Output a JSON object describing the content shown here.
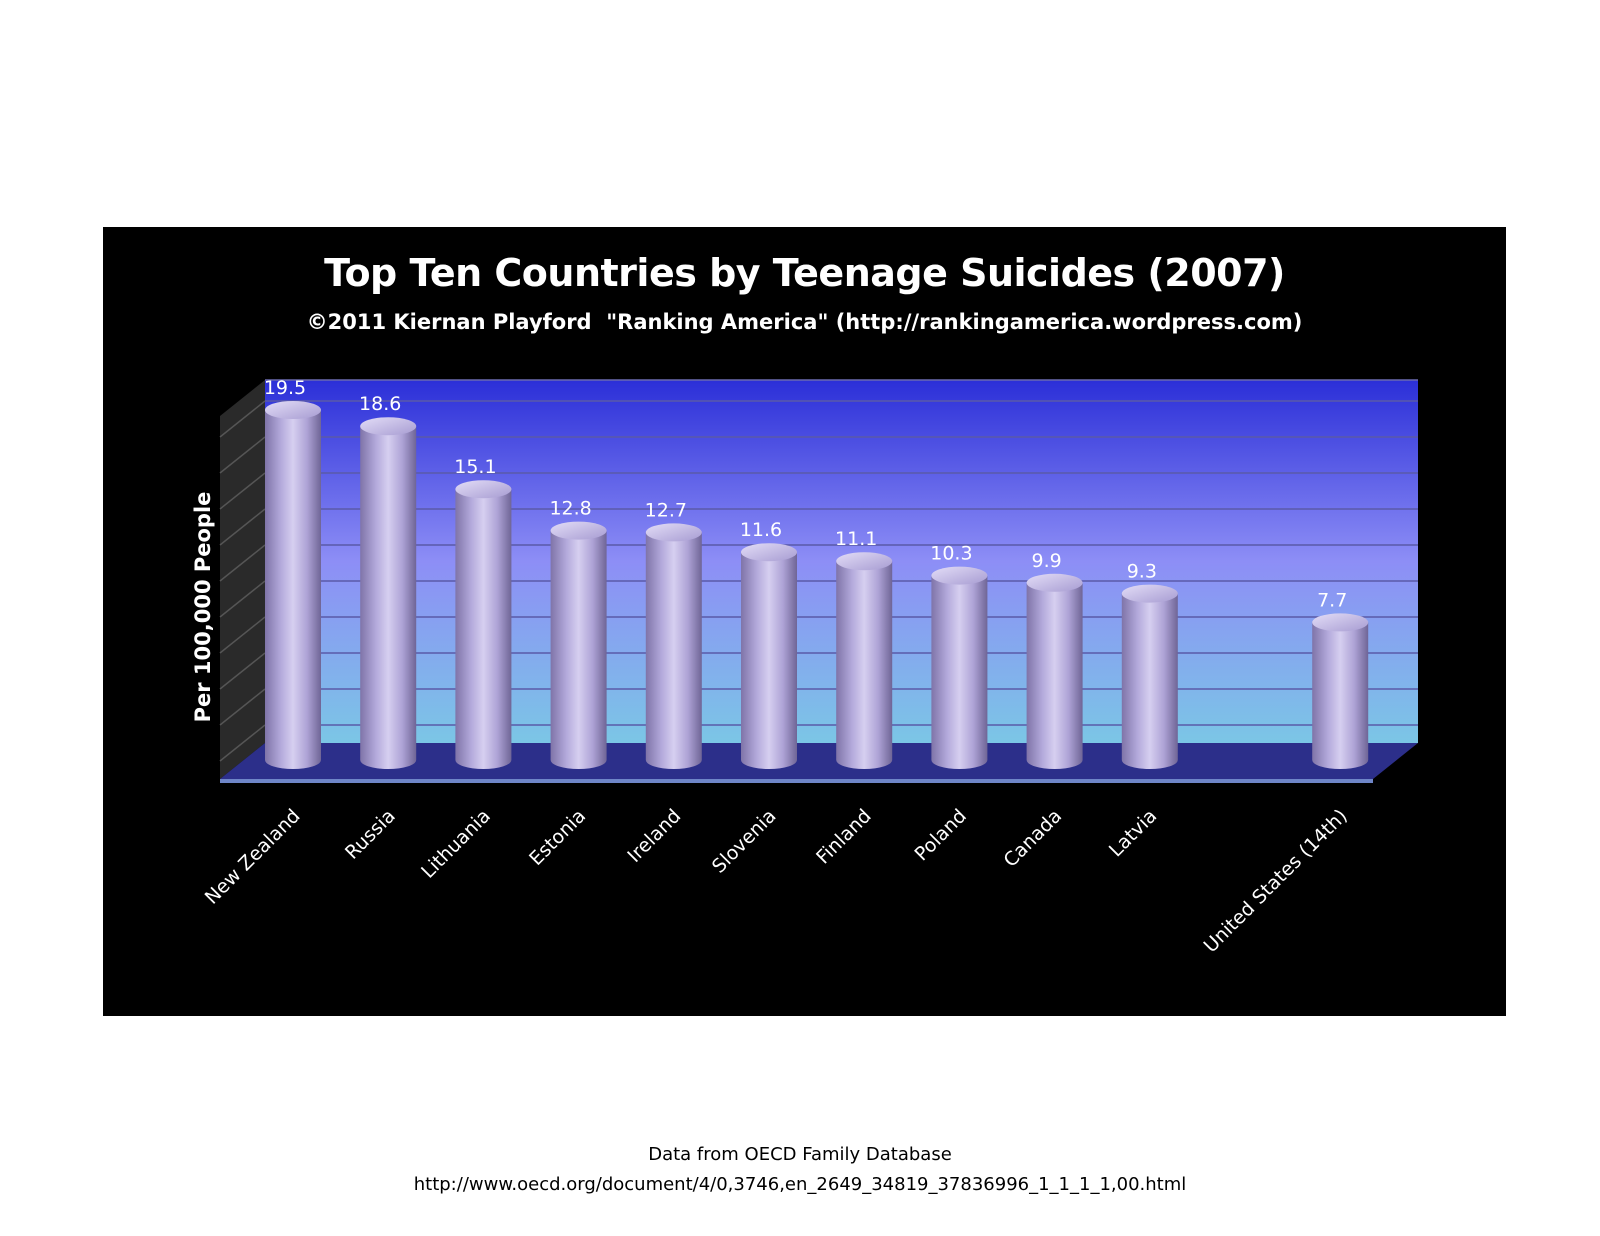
{
  "chart_data": {
    "type": "bar",
    "title": "Top Ten Countries by Teenage Suicides (2007)",
    "subtitle": "©2011 Kiernan Playford  \"Ranking America\" (http://rankingamerica.wordpress.com)",
    "ylabel": "Per 100,000 People",
    "xlabel": "",
    "categories": [
      "New Zealand",
      "Russia",
      "Lithuania",
      "Estonia",
      "Ireland",
      "Slovenia",
      "Finland",
      "Poland",
      "Canada",
      "Latvia",
      "United States (14th)"
    ],
    "values": [
      19.5,
      18.6,
      15.1,
      12.8,
      12.7,
      11.6,
      11.1,
      10.3,
      9.9,
      9.3,
      7.7
    ],
    "value_labels": [
      "19.5",
      "18.6",
      "15.1",
      "12.8",
      "12.7",
      "11.6",
      "11.1",
      "10.3",
      "9.9",
      "9.3",
      "7.7"
    ],
    "ylim": [
      0,
      20
    ],
    "grid": true,
    "y_tick_labels_shown": false,
    "bar_style": "3d-cylinder",
    "colors": {
      "panel": "#000000",
      "bar": "#aea3d6",
      "wall_top": "#2b2fd8",
      "wall_bottom": "#7bc6e6",
      "text": "#ffffff"
    }
  },
  "footer": {
    "source_line": "Data from OECD Family Database",
    "url_line": "http://www.oecd.org/document/4/0,3746,en_2649_34819_37836996_1_1_1_1,00.html"
  }
}
